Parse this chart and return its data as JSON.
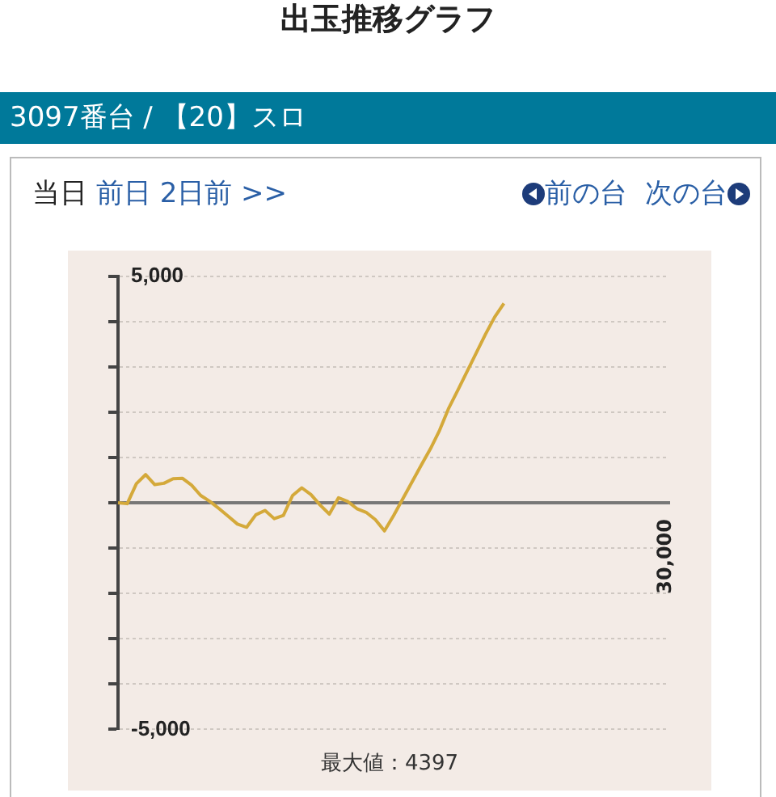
{
  "chart_data": {
    "type": "line",
    "title": "出玉推移グラフ",
    "subtitle": "3097番台 / 【20】スロ",
    "annotations": [
      "当日",
      "前日",
      "2日前",
      ">>",
      "前の台",
      "次の台",
      "最大値：4397",
      "30,000"
    ],
    "categories": [
      null,
      null,
      null,
      null,
      null,
      null,
      null,
      null,
      null,
      null,
      null,
      null,
      null,
      null,
      null,
      null,
      null,
      null,
      null,
      null,
      null,
      null,
      null,
      null,
      null,
      null,
      null,
      null,
      null,
      null,
      null,
      null,
      null,
      null,
      null,
      null,
      null,
      null,
      null,
      null,
      null,
      null,
      null,
      null,
      null,
      null,
      null,
      null,
      null,
      null,
      null,
      null,
      null,
      null,
      null,
      null,
      null,
      null,
      null,
      null,
      null
    ],
    "series": [
      {
        "color": "#d4a93a",
        "values": [
          0,
          -20,
          420,
          620,
          400,
          430,
          530,
          540,
          390,
          160,
          30,
          -130,
          -300,
          -470,
          -540,
          -265,
          -170,
          -350,
          -280,
          160,
          330,
          180,
          -50,
          -250,
          110,
          30,
          -130,
          -210,
          -370,
          -620,
          -280,
          90,
          460,
          830,
          1190,
          1600,
          2090,
          2490,
          2900,
          3310,
          3720,
          4100,
          4397,
          null,
          null,
          null,
          null,
          null,
          null,
          null,
          null,
          null,
          null,
          null,
          null,
          null,
          null,
          null,
          null,
          null,
          null
        ]
      }
    ],
    "ylim": [
      -5000,
      5000
    ],
    "yticks": [
      {
        "value": 5000,
        "label": "5,000"
      },
      {
        "value": 4000,
        "label": null
      },
      {
        "value": 3000,
        "label": null
      },
      {
        "value": 2000,
        "label": null
      },
      {
        "value": 1000,
        "label": null
      },
      {
        "value": 0,
        "label": null
      },
      {
        "value": -1000,
        "label": null
      },
      {
        "value": -2000,
        "label": null
      },
      {
        "value": -3000,
        "label": null
      },
      {
        "value": -4000,
        "label": null
      },
      {
        "value": -5000,
        "label": "-5,000"
      }
    ],
    "tick_labels": "y",
    "grid": "y",
    "legend": false,
    "marker": "none",
    "line_style": "solid"
  }
}
